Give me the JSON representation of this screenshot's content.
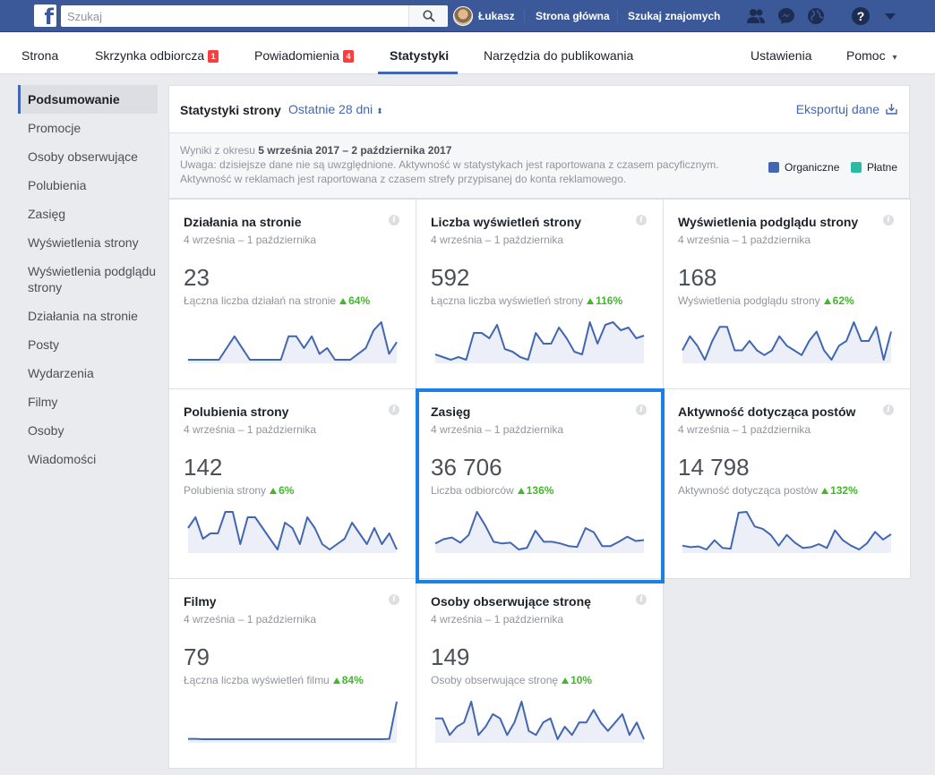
{
  "topbar": {
    "search_placeholder": "Szukaj",
    "user_name": "Łukasz",
    "home_label": "Strona główna",
    "find_friends_label": "Szukaj znajomych",
    "colors": {
      "brand": "#3b5998"
    }
  },
  "pagenav": {
    "items": [
      {
        "label": "Strona"
      },
      {
        "label": "Skrzynka odbiorcza",
        "badge": "1"
      },
      {
        "label": "Powiadomienia",
        "badge": "4"
      },
      {
        "label": "Statystyki"
      },
      {
        "label": "Narzędzia do publikowania"
      }
    ],
    "settings_label": "Ustawienia",
    "help_label": "Pomoc",
    "help_arrow": "▾"
  },
  "sidebar": {
    "items": [
      {
        "label": "Podsumowanie"
      },
      {
        "label": "Promocje"
      },
      {
        "label": "Osoby obserwujące"
      },
      {
        "label": "Polubienia"
      },
      {
        "label": "Zasięg"
      },
      {
        "label": "Wyświetlenia strony"
      },
      {
        "label": "Wyświetlenia podglądu strony"
      },
      {
        "label": "Działania na stronie"
      },
      {
        "label": "Posty"
      },
      {
        "label": "Wydarzenia"
      },
      {
        "label": "Filmy"
      },
      {
        "label": "Osoby"
      },
      {
        "label": "Wiadomości"
      }
    ]
  },
  "header": {
    "title": "Statystyki strony",
    "range_label": "Ostatnie 28 dni",
    "range_arrow": "⬍",
    "export_label": "Eksportuj dane"
  },
  "info": {
    "results_prefix": "Wyniki z okresu",
    "results_range": "5 września 2017 – 2 października 2017",
    "note_line1": "Uwaga: dzisiejsze dane nie są uwzględnione. Aktywność w statystykach jest raportowana z czasem pacyficznym.",
    "note_line2": "Aktywność w reklamach jest raportowana z czasem strefy przypisanej do konta reklamowego.",
    "legend_organic": "Organiczne",
    "legend_paid": "Płatne",
    "colors": {
      "organic": "#4267b2",
      "paid": "#2abba7"
    }
  },
  "cards": [
    {
      "title": "Działania na stronie",
      "date": "4 września – 1 października",
      "value": "23",
      "sub": "Łączna liczba działań na stronie",
      "pct": "64%",
      "spark": [
        0,
        0,
        0,
        0,
        0,
        1,
        2,
        1,
        0,
        0,
        0,
        0,
        0,
        2,
        2,
        1,
        2,
        0.5,
        1,
        0,
        0,
        0,
        0.5,
        1,
        2.5,
        3.2,
        0.5,
        1.5
      ]
    },
    {
      "title": "Liczba wyświetleń strony",
      "date": "4 września – 1 października",
      "value": "592",
      "sub": "Łączna liczba wyświetleń strony",
      "pct": "116%",
      "spark": [
        12,
        11,
        10,
        11,
        10,
        20,
        20,
        18,
        23,
        14,
        13,
        11,
        10,
        20,
        16,
        16,
        22,
        18,
        13,
        12,
        24,
        16,
        23,
        24,
        21,
        22,
        18,
        19
      ]
    },
    {
      "title": "Wyświetlenia podglądu strony",
      "date": "4 września – 1 października",
      "value": "168",
      "sub": "Wyświetlenia podglądu strony",
      "pct": "62%",
      "spark": [
        3,
        6,
        4,
        1,
        5,
        8,
        8,
        3,
        3,
        5,
        3,
        2,
        3,
        6,
        4,
        3,
        2,
        5,
        7,
        3,
        1,
        4,
        5,
        9,
        5,
        5,
        8,
        1,
        7
      ]
    },
    {
      "title": "Polubienia strony",
      "date": "4 września – 1 października",
      "value": "142",
      "sub": "Polubienia strony",
      "pct": "6%",
      "spark": [
        5,
        7,
        3,
        4,
        4,
        8,
        8,
        2,
        7,
        7,
        5,
        3,
        1,
        6,
        5,
        2,
        7,
        5,
        2,
        1,
        2,
        3,
        6,
        4,
        2,
        5,
        2,
        4,
        1
      ]
    },
    {
      "title": "Zasięg",
      "date": "4 września – 1 października",
      "value": "36 706",
      "sub": "Liczba odbiorców",
      "pct": "136%",
      "spark": [
        2500,
        3000,
        3200,
        2600,
        3500,
        6200,
        4600,
        2700,
        2500,
        2600,
        1800,
        2000,
        4000,
        2700,
        2700,
        2500,
        2200,
        2100,
        4300,
        3800,
        2200,
        2200,
        2700,
        3300,
        2800,
        2900
      ]
    },
    {
      "title": "Aktywność dotycząca postów",
      "date": "4 września – 1 października",
      "value": "14 798",
      "sub": "Aktywność dotycząca postów",
      "pct": "132%",
      "spark": [
        1500,
        1300,
        1400,
        1000,
        2200,
        1200,
        1100,
        5800,
        5900,
        4000,
        3700,
        2900,
        1500,
        2900,
        1900,
        1200,
        1300,
        1700,
        1200,
        3500,
        2200,
        1500,
        1000,
        1800,
        3300,
        2300,
        3000
      ]
    },
    {
      "title": "Filmy",
      "date": "4 września – 1 października",
      "value": "79",
      "sub": "Łączna liczba wyświetleń filmu",
      "pct": "84%",
      "spark": [
        1,
        1,
        0.5,
        0.5,
        0.5,
        0.5,
        0.5,
        0.5,
        0.5,
        0.5,
        0.5,
        0.5,
        0.5,
        0.5,
        0.5,
        0.5,
        0.5,
        0.5,
        0.5,
        0.5,
        0.5,
        0.5,
        0.5,
        0.5,
        0.5,
        0.5,
        0.5,
        1,
        50
      ]
    },
    {
      "title": "Osoby obserwujące stronę",
      "date": "4 września – 1 października",
      "value": "149",
      "sub": "Osoby obserwujące stronę",
      "pct": "10%",
      "spark": [
        7,
        7,
        3,
        5,
        6,
        11,
        3,
        5,
        8,
        7,
        3,
        6,
        11,
        4,
        3,
        6,
        7,
        2,
        5,
        3,
        6,
        6,
        9,
        6,
        4,
        6,
        8,
        3,
        6,
        2
      ]
    }
  ]
}
